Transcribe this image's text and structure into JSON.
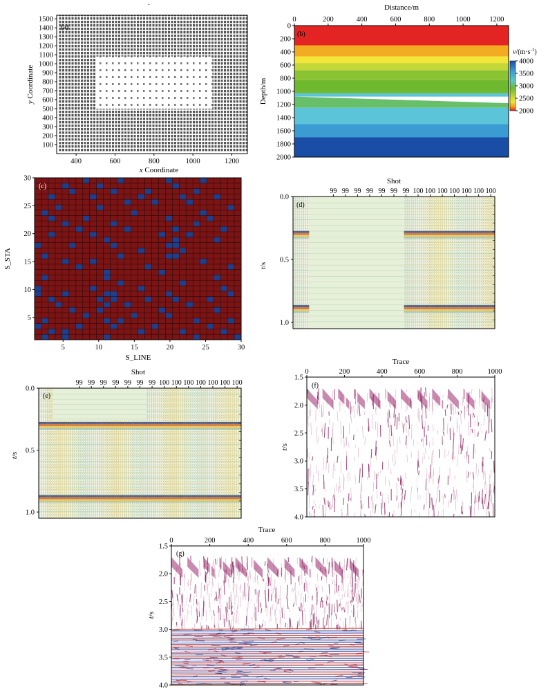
{
  "figure": {
    "top_mark": ".",
    "panels": {
      "a": {
        "label": "(a)",
        "xlabel_italic": "x",
        "xlabel_rest": " Coordinate",
        "ylabel_italic": "y",
        "ylabel_rest": " Coordinate",
        "xticks": [
          "400",
          "600",
          "800",
          "1000",
          "1200"
        ],
        "yticks": [
          "100",
          "200",
          "300",
          "400",
          "500",
          "600",
          "700",
          "800",
          "900",
          "1000",
          "1100",
          "1200",
          "1300",
          "1400",
          "1500"
        ]
      },
      "b": {
        "label": "(b)",
        "xlabel": "Distance/m",
        "ylabel": "Depth/m",
        "xticks": [
          "0",
          "200",
          "400",
          "600",
          "800",
          "1000",
          "1200"
        ],
        "yticks": [
          "0",
          "200",
          "400",
          "600",
          "800",
          "1000",
          "1200",
          "1400",
          "1600",
          "1800",
          "2000"
        ],
        "colorbar_title_italic": "v",
        "colorbar_title_rest": "/(m·s",
        "colorbar_title_sup": "-1",
        "colorbar_title_close": ")",
        "colorbar_ticks": [
          "4000",
          "3500",
          "3000",
          "2500",
          "2000"
        ]
      },
      "c": {
        "label": "(c)",
        "xlabel": "S_LINE",
        "ylabel": "S_STA",
        "xticks": [
          "5",
          "10",
          "15",
          "20",
          "25",
          "30"
        ],
        "yticks": [
          "5",
          "10",
          "15",
          "20",
          "25",
          "30"
        ]
      },
      "d": {
        "label": "(d)",
        "xlabel": "Shot",
        "ylabel_italic": "t",
        "ylabel_rest": "/s",
        "shot_labels": [
          "99",
          "99",
          "99",
          "99",
          "99",
          "99",
          "99",
          "100",
          "100",
          "100",
          "100",
          "100",
          "100",
          "100"
        ],
        "yticks": [
          "0.0",
          "0.5",
          "1.0"
        ]
      },
      "e": {
        "label": "(e)",
        "xlabel": "Shot",
        "ylabel_italic": "t",
        "ylabel_rest": "/s",
        "shot_labels": [
          "99",
          "99",
          "99",
          "99",
          "99",
          "99",
          "99",
          "100",
          "100",
          "100",
          "100",
          "100",
          "100",
          "100"
        ],
        "yticks": [
          "0.0",
          "0.5",
          "1.0"
        ]
      },
      "f": {
        "label": "(f)",
        "xlabel": "Trace",
        "ylabel_italic": "t",
        "ylabel_rest": "/s",
        "xticks": [
          "0",
          "200",
          "400",
          "600",
          "800",
          "1000"
        ],
        "yticks": [
          "1.5",
          "2.0",
          "2.5",
          "3.0",
          "3.5",
          "4.0"
        ]
      },
      "g": {
        "label": "(g)",
        "xlabel": "Trace",
        "ylabel_italic": "t",
        "ylabel_rest": "/s",
        "xticks": [
          "0",
          "200",
          "400",
          "600",
          "800",
          "1000"
        ],
        "yticks": [
          "1.5",
          "2.0",
          "2.5",
          "3.0",
          "3.5",
          "4.0"
        ]
      }
    }
  },
  "chart_data": [
    {
      "panel": "a",
      "type": "scatter",
      "title": "",
      "xlabel": "x Coordinate",
      "ylabel": "y Coordinate",
      "xlim": [
        300,
        1280
      ],
      "ylim": [
        0,
        1540
      ],
      "xtick_values": [
        400,
        600,
        800,
        1000,
        1200
      ],
      "ytick_values": [
        100,
        200,
        300,
        400,
        500,
        600,
        700,
        800,
        900,
        1000,
        1100,
        1200,
        1300,
        1400,
        1500
      ],
      "full_grid": {
        "x_range": [
          310,
          1280
        ],
        "y_range": [
          20,
          1540
        ]
      },
      "sparse_region": {
        "x_range": [
          500,
          1100
        ],
        "y_range": [
          500,
          1080
        ]
      }
    },
    {
      "panel": "b",
      "type": "heatmap",
      "title": "",
      "xlabel": "Distance/m",
      "ylabel": "Depth/m",
      "xlim": [
        0,
        1270
      ],
      "ylim": [
        0,
        2000
      ],
      "xtick_values": [
        0,
        200,
        400,
        600,
        800,
        1000,
        1200
      ],
      "ytick_values": [
        0,
        200,
        400,
        600,
        800,
        1000,
        1200,
        1400,
        1600,
        1800,
        2000
      ],
      "layers": [
        {
          "top": 0,
          "bottom": 300,
          "velocity": 2000
        },
        {
          "top": 300,
          "bottom": 470,
          "velocity": 2300
        },
        {
          "top": 470,
          "bottom": 570,
          "velocity": 2500
        },
        {
          "top": 570,
          "bottom": 680,
          "velocity": 2700
        },
        {
          "top": 680,
          "bottom": 830,
          "velocity": 2900
        },
        {
          "top": 830,
          "bottom": 1030,
          "velocity": 3000
        },
        {
          "top": 1030,
          "bottom": 1080,
          "velocity": 3500
        },
        {
          "top_left": 1080,
          "top_right": 1180,
          "bottom": 1250,
          "velocity": 3100
        },
        {
          "top": 1250,
          "bottom": 1500,
          "velocity": 3500
        },
        {
          "top": 1500,
          "bottom": 1700,
          "velocity": 3750
        },
        {
          "top": 1700,
          "bottom": 2000,
          "velocity": 4000
        }
      ],
      "colorbar": {
        "min": 2000,
        "max": 4000,
        "ticks": [
          2000,
          2500,
          3000,
          3500,
          4000
        ]
      }
    },
    {
      "panel": "c",
      "type": "heatmap",
      "title": "",
      "xlabel": "S_LINE",
      "ylabel": "S_STA",
      "xlim": [
        1,
        30
      ],
      "ylim": [
        1,
        30
      ],
      "grid": true,
      "background_class": "present",
      "missing_cells": [
        [
          8,
          30
        ],
        [
          13,
          30
        ],
        [
          20,
          30
        ],
        [
          25,
          30
        ],
        [
          5,
          29
        ],
        [
          10,
          29
        ],
        [
          21,
          29
        ],
        [
          6,
          28
        ],
        [
          12,
          28
        ],
        [
          17,
          28
        ],
        [
          24,
          28
        ],
        [
          3,
          27
        ],
        [
          9,
          27
        ],
        [
          16,
          27
        ],
        [
          22,
          27
        ],
        [
          27,
          27
        ],
        [
          14,
          26
        ],
        [
          18,
          26
        ],
        [
          23,
          26
        ],
        [
          4,
          25
        ],
        [
          10,
          25
        ],
        [
          29,
          25
        ],
        [
          2,
          24
        ],
        [
          15,
          24
        ],
        [
          25,
          24
        ],
        [
          3,
          23
        ],
        [
          8,
          23
        ],
        [
          20,
          23
        ],
        [
          26,
          23
        ],
        [
          5,
          22
        ],
        [
          12,
          22
        ],
        [
          24,
          22
        ],
        [
          7,
          21
        ],
        [
          14,
          21
        ],
        [
          21,
          21
        ],
        [
          28,
          21
        ],
        [
          3,
          20
        ],
        [
          9,
          20
        ],
        [
          19,
          20
        ],
        [
          23,
          20
        ],
        [
          11,
          19
        ],
        [
          21,
          19
        ],
        [
          27,
          19
        ],
        [
          1,
          18
        ],
        [
          6,
          18
        ],
        [
          12,
          18
        ],
        [
          20,
          18
        ],
        [
          21,
          18
        ],
        [
          16,
          17
        ],
        [
          22,
          17
        ],
        [
          2,
          16
        ],
        [
          13,
          16
        ],
        [
          20,
          16
        ],
        [
          21,
          16
        ],
        [
          5,
          15
        ],
        [
          9,
          15
        ],
        [
          25,
          15
        ],
        [
          7,
          14
        ],
        [
          17,
          14
        ],
        [
          29,
          14
        ],
        [
          11,
          13
        ],
        [
          19,
          13
        ],
        [
          2,
          12
        ],
        [
          11,
          12
        ],
        [
          27,
          12
        ],
        [
          13,
          11
        ],
        [
          22,
          11
        ],
        [
          1,
          10
        ],
        [
          9,
          10
        ],
        [
          16,
          10
        ],
        [
          28,
          10
        ],
        [
          1,
          9
        ],
        [
          5,
          9
        ],
        [
          11,
          9
        ],
        [
          12,
          9
        ],
        [
          20,
          9
        ],
        [
          29,
          9
        ],
        [
          3,
          8
        ],
        [
          10,
          8
        ],
        [
          12,
          8
        ],
        [
          17,
          8
        ],
        [
          21,
          8
        ],
        [
          26,
          8
        ],
        [
          4,
          7
        ],
        [
          11,
          7
        ],
        [
          14,
          7
        ],
        [
          23,
          7
        ],
        [
          6,
          6
        ],
        [
          10,
          6
        ],
        [
          19,
          6
        ],
        [
          27,
          6
        ],
        [
          8,
          5
        ],
        [
          15,
          5
        ],
        [
          20,
          5
        ],
        [
          2,
          4
        ],
        [
          11,
          4
        ],
        [
          13,
          4
        ],
        [
          24,
          4
        ],
        [
          29,
          4
        ],
        [
          1,
          3
        ],
        [
          7,
          3
        ],
        [
          12,
          3
        ],
        [
          18,
          3
        ],
        [
          26,
          3
        ],
        [
          3,
          2
        ],
        [
          5,
          2
        ],
        [
          16,
          2
        ],
        [
          22,
          2
        ],
        [
          28,
          2
        ],
        [
          2,
          1
        ],
        [
          5,
          1
        ],
        [
          11,
          1
        ],
        [
          24,
          1
        ],
        [
          30,
          1
        ]
      ]
    },
    {
      "panel": "d",
      "type": "heatmap",
      "title": "",
      "xlabel": "Shot",
      "ylabel": "t/s",
      "ylim": [
        0,
        1.05
      ],
      "ytick_values": [
        0.0,
        0.5,
        1.0
      ],
      "shot_labels": [
        99,
        99,
        99,
        99,
        99,
        99,
        99,
        100,
        100,
        100,
        100,
        100,
        100,
        100
      ],
      "missing_trace_fraction": [
        0.08,
        0.55
      ],
      "reflection_times": [
        0.29,
        0.88
      ]
    },
    {
      "panel": "e",
      "type": "heatmap",
      "title": "",
      "xlabel": "Shot",
      "ylabel": "t/s",
      "ylim": [
        0,
        1.05
      ],
      "ytick_values": [
        0.0,
        0.5,
        1.0
      ],
      "shot_labels": [
        99,
        99,
        99,
        99,
        99,
        99,
        99,
        100,
        100,
        100,
        100,
        100,
        100,
        100
      ],
      "unfilled_area": {
        "trace_fraction": [
          0.07,
          0.53
        ],
        "t_max": 0.26
      },
      "reflection_times": [
        0.29,
        0.88
      ]
    },
    {
      "panel": "f",
      "type": "heatmap",
      "title": "",
      "xlabel": "Trace",
      "ylabel": "t/s",
      "xlim": [
        0,
        1000
      ],
      "ylim": [
        1.5,
        4.0
      ],
      "xtick_values": [
        0,
        200,
        400,
        600,
        800,
        1000
      ],
      "ytick_values": [
        1.5,
        2.0,
        2.5,
        3.0,
        3.5,
        4.0
      ],
      "first_arrival_t": 1.85
    },
    {
      "panel": "g",
      "type": "heatmap",
      "title": "",
      "xlabel": "Trace",
      "ylabel": "t/s",
      "xlim": [
        0,
        1000
      ],
      "ylim": [
        1.5,
        4.0
      ],
      "xtick_values": [
        0,
        200,
        400,
        600,
        800,
        1000
      ],
      "ytick_values": [
        1.5,
        2.0,
        2.5,
        3.0,
        3.5,
        4.0
      ],
      "first_arrival_t": 1.85,
      "reconstructed_from_t": 3.0
    }
  ]
}
